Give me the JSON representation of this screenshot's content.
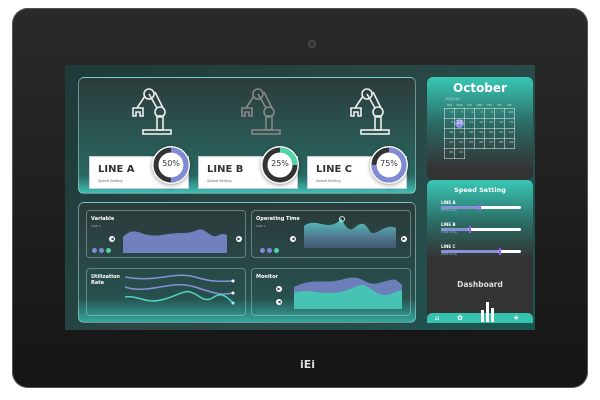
{
  "brand": "iEi",
  "lines": [
    {
      "name": "LINE A",
      "sub": "Speed Setting",
      "percent": 50,
      "label": "50%",
      "color": "#7f8bd6",
      "robot_active": true
    },
    {
      "name": "LINE B",
      "sub": "Speed Setting",
      "percent": 25,
      "label": "25%",
      "color": "#4fd6a6",
      "robot_active": false
    },
    {
      "name": "LINE C",
      "sub": "Speed Setting",
      "percent": 75,
      "label": "75%",
      "color": "#7f8bd6",
      "robot_active": true
    }
  ],
  "charts": {
    "variable": {
      "title": "Variable",
      "sub": "LINE C"
    },
    "operating": {
      "title": "Operating Time",
      "sub": "LINE A"
    },
    "utilization": {
      "title": "Utilization Rate"
    },
    "monitor": {
      "title": "Monitor"
    }
  },
  "calendar": {
    "month": "October",
    "year_month": "2022/10",
    "selected": "10",
    "weekdays": [
      "SUN",
      "MON",
      "TUE",
      "WED",
      "THU",
      "FRI",
      "SAT"
    ],
    "weeks": [
      [
        "2",
        "3",
        "4",
        "5",
        "6",
        "7",
        "1/8"
      ],
      [
        "9",
        "10",
        "11",
        "12",
        "13",
        "14",
        "15"
      ],
      [
        "16",
        "17",
        "18",
        "19",
        "20",
        "21",
        "22"
      ],
      [
        "23",
        "24",
        "25",
        "26",
        "27",
        "28",
        "29"
      ],
      [
        "30",
        "31",
        "",
        "",
        "",
        "",
        ""
      ]
    ]
  },
  "speed": {
    "title": "Speed Setting",
    "sliders": [
      {
        "label": "LINE A",
        "unit": "(3000 mm/s)",
        "value": 0.48
      },
      {
        "label": "LINE B",
        "unit": "(1500 mm/s)",
        "value": 0.35
      },
      {
        "label": "LINE C",
        "unit": "(4500 mm/s)",
        "value": 0.72
      }
    ]
  },
  "dashboard_label": "Dashboard",
  "nav": {
    "home": "⌂",
    "settings": "✿",
    "favorite": "★"
  },
  "colors": {
    "accent": "#35c2ae",
    "purple": "#8b8fd8",
    "green": "#4fd6a6"
  }
}
